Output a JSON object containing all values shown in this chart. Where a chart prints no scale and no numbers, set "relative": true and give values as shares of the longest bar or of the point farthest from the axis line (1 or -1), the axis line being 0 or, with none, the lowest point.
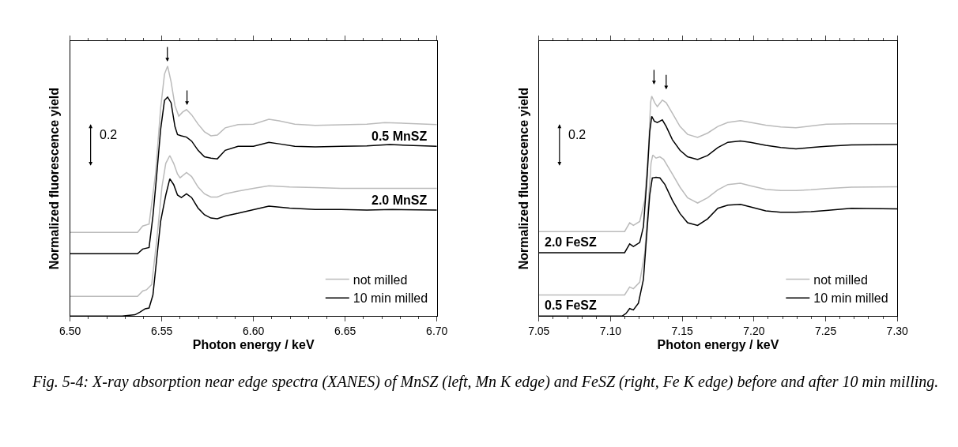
{
  "chart_data": [
    {
      "type": "line",
      "xlabel": "Photon energy / keV",
      "ylabel": "Normalized fluorescence yield",
      "relative": true,
      "xlim": [
        6.5,
        6.7
      ],
      "xticks": [
        {
          "value": 6.5,
          "label": "6.50"
        },
        {
          "value": 6.55,
          "label": "6.55"
        },
        {
          "value": 6.6,
          "label": "6.60"
        },
        {
          "value": 6.65,
          "label": "6.65"
        },
        {
          "value": 6.7,
          "label": "6.70"
        }
      ],
      "legend": "bottom right",
      "tick_labels": "x",
      "series": [
        {
          "name": "not milled",
          "color": "#bbbbbb",
          "x": [
            6.5,
            6.5368,
            6.5396,
            6.5431,
            6.5466,
            6.5494,
            6.5515,
            6.5532,
            6.5551,
            6.5572,
            6.5593,
            6.5614,
            6.5635,
            6.5663,
            6.5698,
            6.5733,
            6.5768,
            6.5803,
            6.5846,
            6.5916,
            6.6,
            6.6084,
            6.614,
            6.6225,
            6.6337,
            6.6478,
            6.6618,
            6.6716,
            6.7
          ],
          "values": [
            0.335,
            0.335,
            0.36,
            0.368,
            0.568,
            0.832,
            0.968,
            1.0,
            0.937,
            0.842,
            0.8,
            0.816,
            0.826,
            0.805,
            0.768,
            0.737,
            0.721,
            0.724,
            0.753,
            0.766,
            0.768,
            0.787,
            0.781,
            0.768,
            0.763,
            0.765,
            0.768,
            0.774,
            0.766
          ]
        },
        {
          "name": "10 min milled",
          "color": "#000000",
          "x": [
            6.5,
            6.5368,
            6.5396,
            6.5431,
            6.5452,
            6.5473,
            6.5494,
            6.5515,
            6.5532,
            6.5551,
            6.5572,
            6.5586,
            6.5607,
            6.5635,
            6.5663,
            6.5698,
            6.5733,
            6.5768,
            6.5803,
            6.5846,
            6.5916,
            6.6,
            6.6084,
            6.614,
            6.6225,
            6.6337,
            6.6478,
            6.6618,
            6.6744,
            6.7
          ],
          "values": [
            0.249,
            0.249,
            0.268,
            0.274,
            0.4,
            0.568,
            0.747,
            0.863,
            0.876,
            0.853,
            0.758,
            0.726,
            0.721,
            0.716,
            0.7,
            0.663,
            0.637,
            0.632,
            0.629,
            0.663,
            0.679,
            0.679,
            0.695,
            0.689,
            0.679,
            0.677,
            0.679,
            0.681,
            0.686,
            0.679
          ]
        },
        {
          "color": "#bbbbbb",
          "x": [
            6.5,
            6.5368,
            6.5396,
            6.5417,
            6.5445,
            6.5473,
            6.5501,
            6.5522,
            6.5544,
            6.5565,
            6.5586,
            6.56,
            6.5635,
            6.5663,
            6.5698,
            6.5733,
            6.5768,
            6.5803,
            6.5846,
            6.5916,
            6.6,
            6.6084,
            6.6197,
            6.6337,
            6.6478,
            6.6618,
            6.6759,
            6.7
          ],
          "values": [
            0.079,
            0.079,
            0.1,
            0.105,
            0.126,
            0.305,
            0.516,
            0.611,
            0.642,
            0.611,
            0.568,
            0.553,
            0.574,
            0.558,
            0.516,
            0.489,
            0.476,
            0.476,
            0.489,
            0.5,
            0.511,
            0.521,
            0.516,
            0.514,
            0.511,
            0.511,
            0.511,
            0.511
          ]
        },
        {
          "color": "#000000",
          "x": [
            6.5,
            6.5284,
            6.5354,
            6.5382,
            6.541,
            6.5431,
            6.5452,
            6.5473,
            6.5494,
            6.5522,
            6.5544,
            6.5565,
            6.5586,
            6.5607,
            6.5635,
            6.5663,
            6.5698,
            6.5733,
            6.5768,
            6.5803,
            6.5846,
            6.5916,
            6.5972,
            6.6084,
            6.6197,
            6.6337,
            6.6478,
            6.6618,
            6.6759,
            6.7
          ],
          "values": [
            0.0,
            0.0,
            0.005,
            0.016,
            0.029,
            0.032,
            0.084,
            0.232,
            0.379,
            0.484,
            0.549,
            0.526,
            0.484,
            0.474,
            0.489,
            0.474,
            0.432,
            0.405,
            0.392,
            0.389,
            0.4,
            0.411,
            0.421,
            0.44,
            0.432,
            0.426,
            0.426,
            0.424,
            0.426,
            0.424
          ]
        }
      ],
      "annotations": [
        "0.2",
        "Fig. 5-4: X-ray absorption near edge spectra (XANES) of MnSZ (left, Mn K edge) and FeSZ (right, Fe K edge) before and after 10 min milling.",
        "0.5 MnSZ",
        "2.0 MnSZ"
      ]
    },
    {
      "type": "line",
      "xlabel": "Photon energy / keV",
      "ylabel": "Normalized fluorescence yield",
      "relative": true,
      "xlim": [
        7.05,
        7.3
      ],
      "xticks": [
        {
          "value": 7.05,
          "label": "7.05"
        },
        {
          "value": 7.1,
          "label": "7.10"
        },
        {
          "value": 7.15,
          "label": "7.15"
        },
        {
          "value": 7.2,
          "label": "7.20"
        },
        {
          "value": 7.25,
          "label": "7.25"
        },
        {
          "value": 7.3,
          "label": "7.30"
        }
      ],
      "legend": "bottom right",
      "tick_labels": "x",
      "series": [
        {
          "name": "not milled",
          "color": "#bbbbbb",
          "x": [
            7.05,
            7.1098,
            7.1133,
            7.1159,
            7.1203,
            7.1238,
            7.1265,
            7.1279,
            7.1287,
            7.1308,
            7.1326,
            7.1361,
            7.1388,
            7.1431,
            7.1484,
            7.1537,
            7.1607,
            7.1677,
            7.1748,
            7.1818,
            7.1906,
            7.1976,
            7.2082,
            7.2187,
            7.2293,
            7.2398,
            7.2504,
            7.2679,
            7.3
          ],
          "values": [
            0.384,
            0.384,
            0.424,
            0.412,
            0.43,
            0.526,
            0.766,
            0.97,
            1.0,
            0.97,
            0.952,
            0.982,
            0.97,
            0.922,
            0.862,
            0.826,
            0.812,
            0.832,
            0.862,
            0.88,
            0.888,
            0.88,
            0.868,
            0.86,
            0.856,
            0.864,
            0.872,
            0.874,
            0.874
          ]
        },
        {
          "name": "10 min milled",
          "color": "#000000",
          "x": [
            7.05,
            7.1098,
            7.1133,
            7.1159,
            7.1203,
            7.1229,
            7.1256,
            7.1273,
            7.1287,
            7.1305,
            7.1326,
            7.1344,
            7.1361,
            7.1388,
            7.1431,
            7.1484,
            7.1537,
            7.1607,
            7.1677,
            7.1748,
            7.1818,
            7.1906,
            7.1976,
            7.2082,
            7.2187,
            7.2293,
            7.2398,
            7.2504,
            7.2679,
            7.3
          ],
          "values": [
            0.288,
            0.288,
            0.328,
            0.316,
            0.334,
            0.406,
            0.646,
            0.838,
            0.908,
            0.886,
            0.88,
            0.886,
            0.892,
            0.862,
            0.802,
            0.754,
            0.724,
            0.712,
            0.73,
            0.766,
            0.79,
            0.796,
            0.79,
            0.776,
            0.766,
            0.76,
            0.766,
            0.772,
            0.778,
            0.78
          ]
        },
        {
          "color": "#bbbbbb",
          "x": [
            7.05,
            7.1098,
            7.1133,
            7.1159,
            7.1203,
            7.1238,
            7.1265,
            7.1282,
            7.1294,
            7.1317,
            7.1344,
            7.137,
            7.1431,
            7.1484,
            7.1537,
            7.1607,
            7.1677,
            7.1748,
            7.1818,
            7.1906,
            7.1976,
            7.2082,
            7.2187,
            7.2293,
            7.2398,
            7.2504,
            7.2679,
            7.3
          ],
          "values": [
            0.096,
            0.096,
            0.132,
            0.124,
            0.154,
            0.286,
            0.526,
            0.694,
            0.732,
            0.718,
            0.724,
            0.712,
            0.646,
            0.586,
            0.538,
            0.514,
            0.538,
            0.574,
            0.598,
            0.604,
            0.592,
            0.576,
            0.571,
            0.571,
            0.574,
            0.58,
            0.586,
            0.588
          ]
        },
        {
          "color": "#000000",
          "x": [
            7.05,
            7.1082,
            7.1108,
            7.1133,
            7.1159,
            7.1194,
            7.1229,
            7.1256,
            7.1273,
            7.1291,
            7.1317,
            7.1344,
            7.1379,
            7.1431,
            7.1484,
            7.1537,
            7.1607,
            7.1677,
            7.1748,
            7.1818,
            7.1906,
            7.1976,
            7.2082,
            7.2187,
            7.2293,
            7.2398,
            7.2504,
            7.2679,
            7.3
          ],
          "values": [
            0.0,
            0.0,
            0.012,
            0.034,
            0.028,
            0.058,
            0.166,
            0.406,
            0.55,
            0.628,
            0.631,
            0.628,
            0.598,
            0.526,
            0.466,
            0.424,
            0.412,
            0.442,
            0.49,
            0.504,
            0.508,
            0.496,
            0.478,
            0.472,
            0.472,
            0.475,
            0.48,
            0.49,
            0.487
          ]
        }
      ],
      "annotations": [
        "0.2",
        "2.0 FeSZ",
        "0.5 FeSZ"
      ]
    }
  ]
}
